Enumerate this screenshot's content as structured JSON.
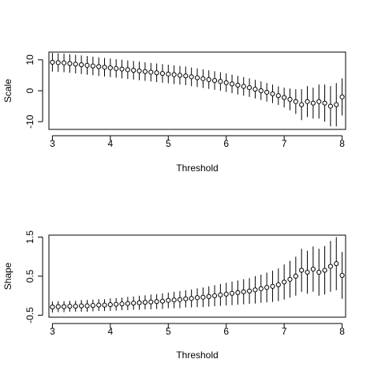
{
  "chart_data": [
    {
      "type": "scatter",
      "title": "",
      "xlabel": "Threshold",
      "ylabel": "Scale",
      "xlim": [
        2.94,
        8.06
      ],
      "ylim": [
        -12.5,
        12.5
      ],
      "xticks": [
        3,
        4,
        5,
        6,
        7,
        8
      ],
      "yticks": [
        10,
        0,
        -10
      ],
      "ytick_labels": [
        "10",
        "0",
        "-10"
      ],
      "grid": false,
      "legend": "none",
      "error_bars": true,
      "series": [
        {
          "x": [
            3.0,
            3.1,
            3.2,
            3.3,
            3.4,
            3.5,
            3.6,
            3.7,
            3.8,
            3.9,
            4.0,
            4.1,
            4.2,
            4.3,
            4.4,
            4.5,
            4.6,
            4.7,
            4.8,
            4.9,
            5.0,
            5.1,
            5.2,
            5.3,
            5.4,
            5.5,
            5.6,
            5.7,
            5.8,
            5.9,
            6.0,
            6.1,
            6.2,
            6.3,
            6.4,
            6.5,
            6.6,
            6.7,
            6.8,
            6.9,
            7.0,
            7.1,
            7.2,
            7.3,
            7.4,
            7.5,
            7.6,
            7.7,
            7.8,
            7.9,
            8.0
          ],
          "y": [
            9.2,
            9.1,
            9.0,
            8.8,
            8.6,
            8.4,
            8.2,
            8.0,
            7.8,
            7.6,
            7.4,
            7.2,
            7.0,
            6.8,
            6.6,
            6.4,
            6.2,
            6.0,
            5.8,
            5.6,
            5.4,
            5.2,
            5.0,
            4.8,
            4.5,
            4.2,
            3.9,
            3.6,
            3.3,
            3.0,
            2.6,
            2.2,
            1.8,
            1.4,
            1.0,
            0.5,
            0.0,
            -0.5,
            -1.0,
            -1.6,
            -2.2,
            -2.8,
            -3.5,
            -4.5,
            -3.5,
            -4.0,
            -3.5,
            -4.0,
            -5.0,
            -4.5,
            -2.0
          ],
          "err": [
            3.0,
            3.0,
            3.0,
            3.0,
            3.0,
            3.0,
            3.0,
            3.0,
            3.0,
            3.0,
            3.0,
            3.0,
            3.0,
            3.0,
            3.0,
            3.0,
            3.0,
            3.0,
            3.0,
            3.0,
            3.0,
            3.0,
            3.0,
            3.0,
            3.0,
            3.0,
            3.0,
            3.0,
            3.0,
            3.0,
            3.0,
            3.0,
            3.0,
            3.0,
            3.0,
            3.0,
            3.0,
            3.0,
            3.0,
            3.0,
            3.2,
            3.5,
            4.0,
            5.0,
            5.0,
            5.0,
            5.5,
            6.0,
            6.5,
            7.0,
            6.0
          ]
        }
      ]
    },
    {
      "type": "scatter",
      "title": "",
      "xlabel": "Threshold",
      "ylabel": "Shape",
      "xlim": [
        2.94,
        8.06
      ],
      "ylim": [
        -0.55,
        1.55
      ],
      "xticks": [
        3,
        4,
        5,
        6,
        7,
        8
      ],
      "yticks": [
        1.5,
        0.5,
        -0.5
      ],
      "ytick_labels": [
        "1.5",
        "0.5",
        "-0.5"
      ],
      "grid": false,
      "legend": "none",
      "error_bars": true,
      "series": [
        {
          "x": [
            3.0,
            3.1,
            3.2,
            3.3,
            3.4,
            3.5,
            3.6,
            3.7,
            3.8,
            3.9,
            4.0,
            4.1,
            4.2,
            4.3,
            4.4,
            4.5,
            4.6,
            4.7,
            4.8,
            4.9,
            5.0,
            5.1,
            5.2,
            5.3,
            5.4,
            5.5,
            5.6,
            5.7,
            5.8,
            5.9,
            6.0,
            6.1,
            6.2,
            6.3,
            6.4,
            6.5,
            6.6,
            6.7,
            6.8,
            6.9,
            7.0,
            7.1,
            7.2,
            7.3,
            7.4,
            7.5,
            7.6,
            7.7,
            7.8,
            7.9,
            8.0
          ],
          "y": [
            -0.29,
            -0.28,
            -0.28,
            -0.27,
            -0.27,
            -0.26,
            -0.26,
            -0.25,
            -0.24,
            -0.24,
            -0.23,
            -0.22,
            -0.21,
            -0.2,
            -0.19,
            -0.18,
            -0.17,
            -0.16,
            -0.15,
            -0.14,
            -0.12,
            -0.11,
            -0.1,
            -0.08,
            -0.07,
            -0.05,
            -0.04,
            -0.02,
            0.0,
            0.02,
            0.04,
            0.06,
            0.08,
            0.1,
            0.12,
            0.15,
            0.18,
            0.21,
            0.24,
            0.28,
            0.35,
            0.42,
            0.5,
            0.65,
            0.6,
            0.68,
            0.6,
            0.65,
            0.75,
            0.82,
            0.52
          ],
          "err": [
            0.14,
            0.14,
            0.14,
            0.14,
            0.14,
            0.15,
            0.15,
            0.15,
            0.15,
            0.15,
            0.16,
            0.16,
            0.16,
            0.17,
            0.17,
            0.18,
            0.18,
            0.19,
            0.19,
            0.2,
            0.2,
            0.21,
            0.22,
            0.22,
            0.23,
            0.24,
            0.25,
            0.26,
            0.27,
            0.28,
            0.29,
            0.3,
            0.31,
            0.32,
            0.33,
            0.35,
            0.36,
            0.38,
            0.4,
            0.42,
            0.45,
            0.47,
            0.5,
            0.55,
            0.55,
            0.58,
            0.6,
            0.62,
            0.65,
            0.68,
            0.6
          ]
        }
      ]
    }
  ]
}
